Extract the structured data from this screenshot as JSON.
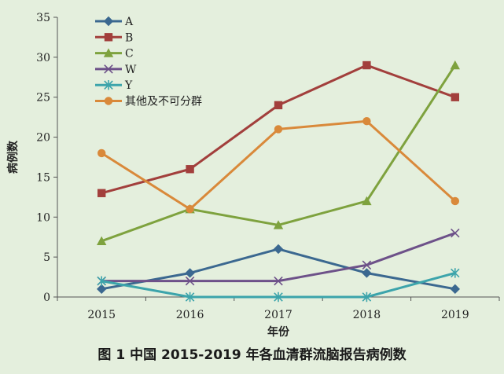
{
  "caption": "图 1  中国 2015-2019 年各血清群流脑报告病例数",
  "chart_data": {
    "type": "line",
    "title": "",
    "xlabel": "年份",
    "ylabel": "病例数",
    "x": [
      2015,
      2016,
      2017,
      2018,
      2019
    ],
    "ylim": [
      0,
      35
    ],
    "yticks": [
      0,
      5,
      10,
      15,
      20,
      25,
      30,
      35
    ],
    "grid": false,
    "legend_position": "top-left",
    "series": [
      {
        "name": "A",
        "values": [
          1,
          3,
          6,
          3,
          1
        ],
        "color": "#3b6890",
        "marker": "diamond"
      },
      {
        "name": "B",
        "values": [
          13,
          16,
          24,
          29,
          25
        ],
        "color": "#a23f3c",
        "marker": "square"
      },
      {
        "name": "C",
        "values": [
          7,
          11,
          9,
          12,
          29
        ],
        "color": "#7ea23e",
        "marker": "triangle"
      },
      {
        "name": "W",
        "values": [
          2,
          2,
          2,
          4,
          8
        ],
        "color": "#6d5189",
        "marker": "x"
      },
      {
        "name": "Y",
        "values": [
          2,
          0,
          0,
          0,
          3
        ],
        "color": "#3ca4ab",
        "marker": "star"
      },
      {
        "name": "其他及不可分群",
        "values": [
          18,
          11,
          21,
          22,
          12
        ],
        "color": "#d9893a",
        "marker": "circle"
      }
    ]
  }
}
